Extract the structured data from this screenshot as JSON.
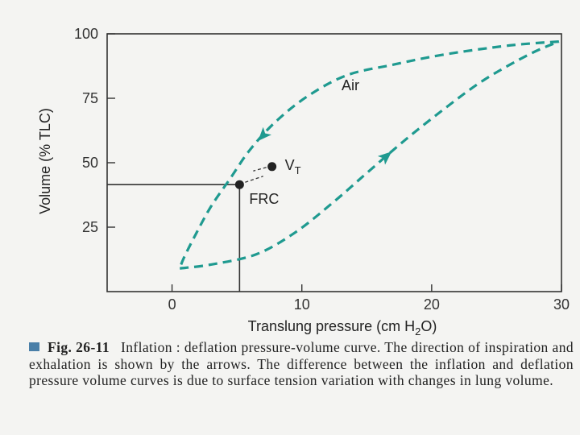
{
  "chart_data": {
    "type": "line",
    "xlabel": "Translung pressure (cm H2O)",
    "xlabel_parts": [
      "Translung pressure (cm H",
      "2",
      "O)"
    ],
    "ylabel": "Volume (% TLC)",
    "xlim": [
      -5,
      30
    ],
    "ylim": [
      0,
      100
    ],
    "x_ticks": [
      0,
      10,
      20,
      30
    ],
    "x_tick_labels": [
      "0",
      "10",
      "20",
      "30"
    ],
    "y_ticks": [
      25,
      50,
      75,
      100
    ],
    "y_tick_labels": [
      "25",
      "50",
      "75",
      "100"
    ],
    "series": [
      {
        "name": "Inflation",
        "style": "dashed",
        "x": [
          0.6,
          3,
          6.5,
          9.5,
          12.5,
          15,
          18,
          21,
          24,
          27.5,
          29.8
        ],
        "y": [
          9,
          10.5,
          14.5,
          23,
          35,
          46,
          59,
          71,
          82,
          92,
          97
        ]
      },
      {
        "name": "Deflation",
        "style": "dashed",
        "x": [
          29.8,
          26,
          21,
          17,
          13.5,
          10.5,
          8,
          6,
          4.5,
          3,
          1.8,
          0.9,
          0.6
        ],
        "y": [
          97,
          95.5,
          92,
          88,
          84,
          76,
          66,
          55,
          44,
          33,
          22,
          13,
          9
        ]
      }
    ],
    "points": [
      {
        "name": "VT",
        "x": 7.7,
        "y": 48.5
      },
      {
        "name": "FRC",
        "x": 5.2,
        "y": 41.5
      }
    ],
    "reference_lines": [
      {
        "from": [
          -5,
          41.5
        ],
        "to": [
          5.2,
          41.5
        ]
      },
      {
        "from": [
          5.2,
          41.5
        ],
        "to": [
          5.2,
          0
        ]
      }
    ],
    "annotations": {
      "air": "Air",
      "vt_main": "V",
      "vt_sub": "T",
      "frc": "FRC"
    },
    "colors": {
      "curve": "#1f9a90",
      "axis": "#333333",
      "caption_square": "#4a7fa8"
    }
  },
  "caption": {
    "figure_label": "Fig. 26-11",
    "text": "Inflation : deflation pressure-volume curve. The direction of inspiration and exhalation is shown by the arrows. The difference between the inflation and deflation pressure volume curves is due to surface tension variation with changes in lung volume."
  }
}
